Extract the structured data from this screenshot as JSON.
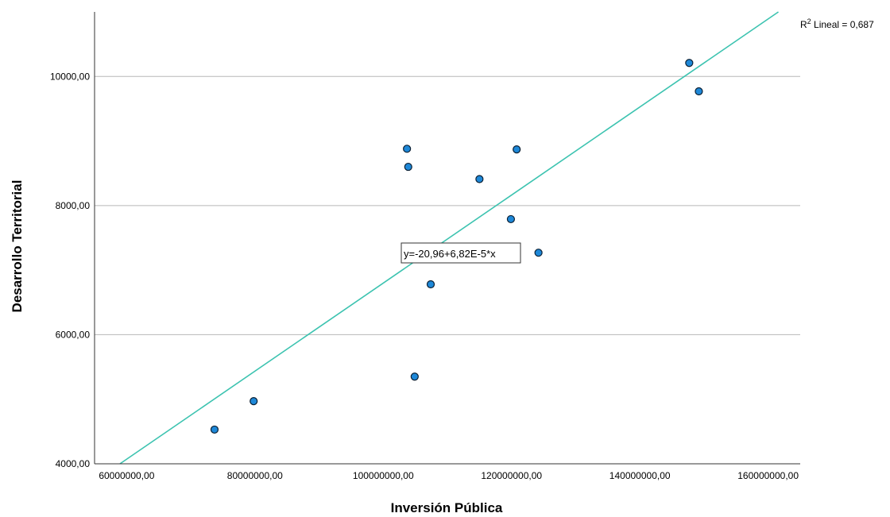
{
  "chart_data": {
    "type": "scatter",
    "xlabel": "Inversión Pública",
    "ylabel": "Desarrollo Territorial",
    "xlim": [
      55000000,
      165000000
    ],
    "ylim": [
      4000,
      11000
    ],
    "x_ticks": [
      60000000,
      80000000,
      100000000,
      120000000,
      140000000,
      160000000
    ],
    "x_tick_labels": [
      "60000000,00",
      "80000000,00",
      "100000000,00",
      "120000000,00",
      "140000000,00",
      "160000000,00"
    ],
    "y_ticks": [
      4000,
      6000,
      8000,
      10000
    ],
    "y_tick_labels": [
      "4000,00",
      "6000,00",
      "8000,00",
      "10000,00"
    ],
    "grid": "horizontal",
    "points": [
      {
        "x": 73700000,
        "y": 4530
      },
      {
        "x": 79800000,
        "y": 4970
      },
      {
        "x": 103700000,
        "y": 8880
      },
      {
        "x": 103900000,
        "y": 8600
      },
      {
        "x": 104900000,
        "y": 5350
      },
      {
        "x": 107400000,
        "y": 6780
      },
      {
        "x": 115000000,
        "y": 8410
      },
      {
        "x": 119900000,
        "y": 7790
      },
      {
        "x": 120800000,
        "y": 8870
      },
      {
        "x": 124200000,
        "y": 7270
      },
      {
        "x": 147700000,
        "y": 10210
      },
      {
        "x": 149200000,
        "y": 9770
      }
    ],
    "fit_line": {
      "intercept": -20.96,
      "slope": 6.82e-05,
      "equation_label": "y=-20,96+6,82E-5*x",
      "r2_prefix": "R",
      "r2_sup": "2",
      "r2_text": " Lineal = 0,687",
      "color": "#3cc3b0"
    },
    "point_color": "#1e88d8",
    "point_stroke": "#0a1f33"
  }
}
